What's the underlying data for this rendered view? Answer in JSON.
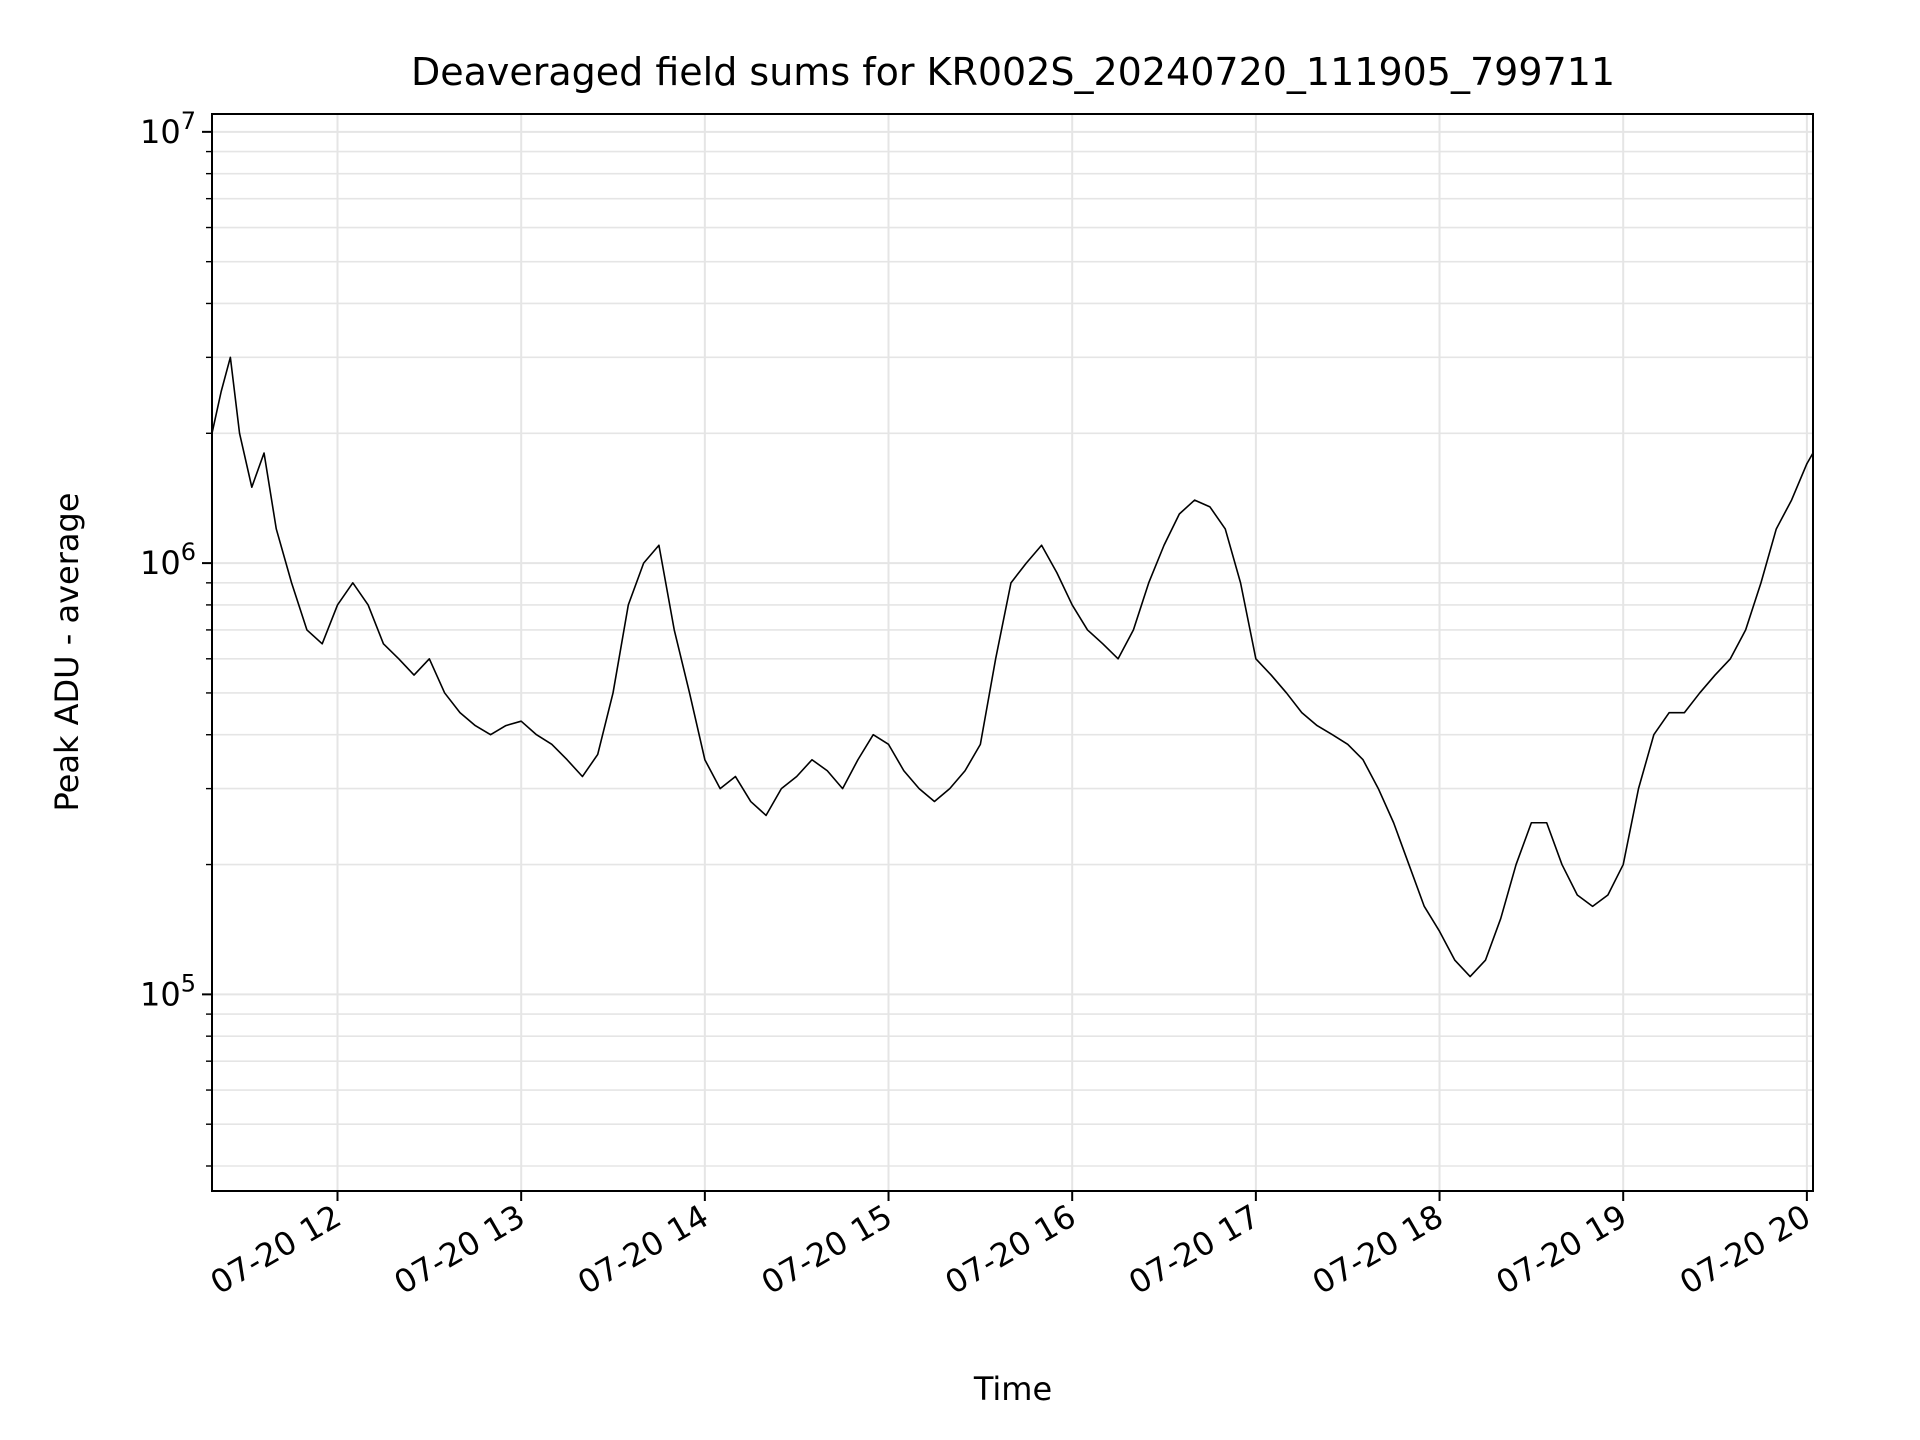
{
  "chart_data": {
    "type": "line",
    "title": "Deaveraged field sums for KR002S_20240720_111905_799711",
    "xlabel": "Time",
    "ylabel": "Peak ADU - average",
    "yscale": "log",
    "ylim": [
      35000,
      11000000
    ],
    "xlim": [
      "2024-07-20 11:19",
      "2024-07-20 20:02"
    ],
    "grid": true,
    "line_color": "#000000",
    "grid_color": "#e5e5e5",
    "x_ticks": [
      {
        "t": "2024-07-20 12:00",
        "label": "07-20 12"
      },
      {
        "t": "2024-07-20 13:00",
        "label": "07-20 13"
      },
      {
        "t": "2024-07-20 14:00",
        "label": "07-20 14"
      },
      {
        "t": "2024-07-20 15:00",
        "label": "07-20 15"
      },
      {
        "t": "2024-07-20 16:00",
        "label": "07-20 16"
      },
      {
        "t": "2024-07-20 17:00",
        "label": "07-20 17"
      },
      {
        "t": "2024-07-20 18:00",
        "label": "07-20 18"
      },
      {
        "t": "2024-07-20 19:00",
        "label": "07-20 19"
      },
      {
        "t": "2024-07-20 20:00",
        "label": "07-20 20"
      }
    ],
    "y_ticks": [
      {
        "value": 100000,
        "base": "10",
        "exp": "5"
      },
      {
        "value": 1000000,
        "base": "10",
        "exp": "6"
      },
      {
        "value": 10000000,
        "base": "10",
        "exp": "7"
      }
    ],
    "series": [
      {
        "x": [
          "2024-07-20 11:19",
          "2024-07-20 11:22",
          "2024-07-20 11:25",
          "2024-07-20 11:28",
          "2024-07-20 11:32",
          "2024-07-20 11:36",
          "2024-07-20 11:40",
          "2024-07-20 11:45",
          "2024-07-20 11:50",
          "2024-07-20 11:55",
          "2024-07-20 12:00",
          "2024-07-20 12:05",
          "2024-07-20 12:10",
          "2024-07-20 12:15",
          "2024-07-20 12:20",
          "2024-07-20 12:25",
          "2024-07-20 12:30",
          "2024-07-20 12:35",
          "2024-07-20 12:40",
          "2024-07-20 12:45",
          "2024-07-20 12:50",
          "2024-07-20 12:55",
          "2024-07-20 13:00",
          "2024-07-20 13:05",
          "2024-07-20 13:10",
          "2024-07-20 13:15",
          "2024-07-20 13:20",
          "2024-07-20 13:25",
          "2024-07-20 13:30",
          "2024-07-20 13:35",
          "2024-07-20 13:40",
          "2024-07-20 13:45",
          "2024-07-20 13:50",
          "2024-07-20 13:55",
          "2024-07-20 14:00",
          "2024-07-20 14:05",
          "2024-07-20 14:10",
          "2024-07-20 14:15",
          "2024-07-20 14:20",
          "2024-07-20 14:25",
          "2024-07-20 14:30",
          "2024-07-20 14:35",
          "2024-07-20 14:40",
          "2024-07-20 14:45",
          "2024-07-20 14:50",
          "2024-07-20 14:55",
          "2024-07-20 15:00",
          "2024-07-20 15:05",
          "2024-07-20 15:10",
          "2024-07-20 15:15",
          "2024-07-20 15:20",
          "2024-07-20 15:25",
          "2024-07-20 15:30",
          "2024-07-20 15:35",
          "2024-07-20 15:40",
          "2024-07-20 15:45",
          "2024-07-20 15:50",
          "2024-07-20 15:55",
          "2024-07-20 16:00",
          "2024-07-20 16:05",
          "2024-07-20 16:10",
          "2024-07-20 16:15",
          "2024-07-20 16:20",
          "2024-07-20 16:25",
          "2024-07-20 16:30",
          "2024-07-20 16:35",
          "2024-07-20 16:40",
          "2024-07-20 16:45",
          "2024-07-20 16:50",
          "2024-07-20 16:55",
          "2024-07-20 17:00",
          "2024-07-20 17:05",
          "2024-07-20 17:10",
          "2024-07-20 17:15",
          "2024-07-20 17:20",
          "2024-07-20 17:25",
          "2024-07-20 17:30",
          "2024-07-20 17:35",
          "2024-07-20 17:40",
          "2024-07-20 17:45",
          "2024-07-20 17:50",
          "2024-07-20 17:55",
          "2024-07-20 18:00",
          "2024-07-20 18:05",
          "2024-07-20 18:10",
          "2024-07-20 18:15",
          "2024-07-20 18:20",
          "2024-07-20 18:25",
          "2024-07-20 18:30",
          "2024-07-20 18:35",
          "2024-07-20 18:40",
          "2024-07-20 18:45",
          "2024-07-20 18:50",
          "2024-07-20 18:55",
          "2024-07-20 19:00",
          "2024-07-20 19:05",
          "2024-07-20 19:10",
          "2024-07-20 19:15",
          "2024-07-20 19:20",
          "2024-07-20 19:25",
          "2024-07-20 19:30",
          "2024-07-20 19:35",
          "2024-07-20 19:40",
          "2024-07-20 19:45",
          "2024-07-20 19:50",
          "2024-07-20 19:55",
          "2024-07-20 20:00",
          "2024-07-20 20:02"
        ],
        "y": [
          2000000,
          2500000,
          3000000,
          2000000,
          1500000,
          1800000,
          1200000,
          900000,
          700000,
          650000,
          800000,
          900000,
          800000,
          650000,
          600000,
          550000,
          600000,
          500000,
          450000,
          420000,
          400000,
          420000,
          430000,
          400000,
          380000,
          350000,
          320000,
          360000,
          500000,
          800000,
          1000000,
          1100000,
          700000,
          500000,
          350000,
          300000,
          320000,
          280000,
          260000,
          300000,
          320000,
          350000,
          330000,
          300000,
          350000,
          400000,
          380000,
          330000,
          300000,
          280000,
          300000,
          330000,
          380000,
          600000,
          900000,
          1000000,
          1100000,
          950000,
          800000,
          700000,
          650000,
          600000,
          700000,
          900000,
          1100000,
          1300000,
          1400000,
          1350000,
          1200000,
          900000,
          600000,
          550000,
          500000,
          450000,
          420000,
          400000,
          380000,
          350000,
          300000,
          250000,
          200000,
          160000,
          140000,
          120000,
          110000,
          120000,
          150000,
          200000,
          250000,
          250000,
          200000,
          170000,
          160000,
          170000,
          200000,
          300000,
          400000,
          450000,
          450000,
          500000,
          550000,
          600000,
          700000,
          900000,
          1200000,
          1400000,
          1700000,
          1800000
        ]
      }
    ]
  }
}
